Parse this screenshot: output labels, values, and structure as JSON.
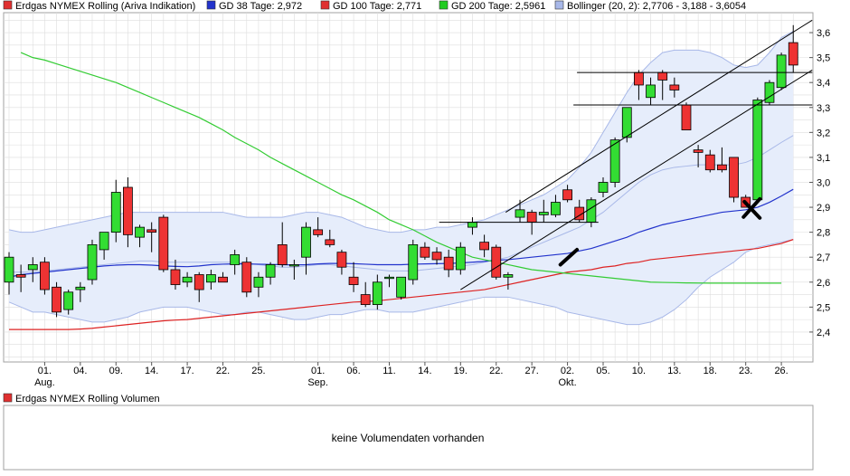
{
  "legend": {
    "items": [
      {
        "label": "Erdgas NYMEX Rolling (Ariva Indikation)",
        "color": "#e03030"
      },
      {
        "label": "GD 38 Tage: 2,972",
        "color": "#2233cc"
      },
      {
        "label": "GD 100 Tage: 2,771",
        "color": "#e03030"
      },
      {
        "label": "GD 200 Tage: 2,5961",
        "color": "#22cc22"
      },
      {
        "label": "Bollinger (20, 2): 2,7706 - 3,188 - 3,6054",
        "color": "#a8b8e8"
      }
    ]
  },
  "volume": {
    "legend_label": "Erdgas NYMEX Rolling Volumen",
    "legend_color": "#e03030",
    "message": "keine Volumendaten vorhanden"
  },
  "colors": {
    "up": "#33dd33",
    "down": "#ee3333",
    "ma38": "#2233cc",
    "ma100": "#dd2222",
    "ma200": "#33cc33",
    "bollinger_line": "#a8b8e8",
    "bollinger_fill": "#e6edfb",
    "grid": "#dddddd"
  },
  "chart_data": {
    "type": "candlestick",
    "title": "Erdgas NYMEX Rolling (Ariva Indikation)",
    "ylim": [
      2.28,
      3.68
    ],
    "y_ticks": [
      2.4,
      2.5,
      2.6,
      2.7,
      2.8,
      2.9,
      3.0,
      3.1,
      3.2,
      3.3,
      3.4,
      3.5,
      3.6
    ],
    "y_tick_labels": [
      "2,4",
      "2,5",
      "2,6",
      "2,7",
      "2,8",
      "2,9",
      "3,0",
      "3,1",
      "3,2",
      "3,3",
      "3,4",
      "3,5",
      "3,6"
    ],
    "x_ticks": [
      {
        "label": "01.",
        "sub": "Aug.",
        "idx": 3
      },
      {
        "label": "04.",
        "sub": "",
        "idx": 6
      },
      {
        "label": "09.",
        "sub": "",
        "idx": 9
      },
      {
        "label": "14.",
        "sub": "",
        "idx": 12
      },
      {
        "label": "17.",
        "sub": "",
        "idx": 15
      },
      {
        "label": "22.",
        "sub": "",
        "idx": 18
      },
      {
        "label": "25.",
        "sub": "",
        "idx": 21
      },
      {
        "label": "01.",
        "sub": "Sep.",
        "idx": 26
      },
      {
        "label": "06.",
        "sub": "",
        "idx": 29
      },
      {
        "label": "11.",
        "sub": "",
        "idx": 32
      },
      {
        "label": "14.",
        "sub": "",
        "idx": 35
      },
      {
        "label": "19.",
        "sub": "",
        "idx": 38
      },
      {
        "label": "22.",
        "sub": "",
        "idx": 41
      },
      {
        "label": "27.",
        "sub": "",
        "idx": 44
      },
      {
        "label": "02.",
        "sub": "Okt.",
        "idx": 47
      },
      {
        "label": "05.",
        "sub": "",
        "idx": 50
      },
      {
        "label": "10.",
        "sub": "",
        "idx": 53
      },
      {
        "label": "13.",
        "sub": "",
        "idx": 56
      },
      {
        "label": "18.",
        "sub": "",
        "idx": 59
      },
      {
        "label": "23.",
        "sub": "",
        "idx": 62
      },
      {
        "label": "26.",
        "sub": "",
        "idx": 65
      }
    ],
    "candles": [
      {
        "o": 2.6,
        "h": 2.72,
        "l": 2.55,
        "c": 2.7
      },
      {
        "o": 2.63,
        "h": 2.67,
        "l": 2.56,
        "c": 2.62
      },
      {
        "o": 2.65,
        "h": 2.7,
        "l": 2.6,
        "c": 2.67
      },
      {
        "o": 2.68,
        "h": 2.7,
        "l": 2.55,
        "c": 2.57
      },
      {
        "o": 2.58,
        "h": 2.6,
        "l": 2.46,
        "c": 2.48
      },
      {
        "o": 2.49,
        "h": 2.57,
        "l": 2.47,
        "c": 2.56
      },
      {
        "o": 2.57,
        "h": 2.6,
        "l": 2.52,
        "c": 2.58
      },
      {
        "o": 2.61,
        "h": 2.77,
        "l": 2.59,
        "c": 2.75
      },
      {
        "o": 2.73,
        "h": 2.8,
        "l": 2.69,
        "c": 2.8
      },
      {
        "o": 2.8,
        "h": 3.01,
        "l": 2.76,
        "c": 2.96
      },
      {
        "o": 2.98,
        "h": 3.02,
        "l": 2.74,
        "c": 2.79
      },
      {
        "o": 2.78,
        "h": 2.83,
        "l": 2.74,
        "c": 2.82
      },
      {
        "o": 2.81,
        "h": 2.84,
        "l": 2.72,
        "c": 2.8
      },
      {
        "o": 2.86,
        "h": 2.87,
        "l": 2.64,
        "c": 2.65
      },
      {
        "o": 2.65,
        "h": 2.69,
        "l": 2.57,
        "c": 2.59
      },
      {
        "o": 2.6,
        "h": 2.64,
        "l": 2.58,
        "c": 2.62
      },
      {
        "o": 2.63,
        "h": 2.64,
        "l": 2.52,
        "c": 2.57
      },
      {
        "o": 2.6,
        "h": 2.65,
        "l": 2.57,
        "c": 2.63
      },
      {
        "o": 2.62,
        "h": 2.64,
        "l": 2.6,
        "c": 2.6
      },
      {
        "o": 2.67,
        "h": 2.73,
        "l": 2.63,
        "c": 2.71
      },
      {
        "o": 2.68,
        "h": 2.7,
        "l": 2.54,
        "c": 2.56
      },
      {
        "o": 2.58,
        "h": 2.64,
        "l": 2.54,
        "c": 2.62
      },
      {
        "o": 2.62,
        "h": 2.68,
        "l": 2.59,
        "c": 2.67
      },
      {
        "o": 2.75,
        "h": 2.84,
        "l": 2.66,
        "c": 2.67
      },
      {
        "o": 2.67,
        "h": 2.69,
        "l": 2.61,
        "c": 2.67
      },
      {
        "o": 2.7,
        "h": 2.84,
        "l": 2.63,
        "c": 2.82
      },
      {
        "o": 2.81,
        "h": 2.86,
        "l": 2.78,
        "c": 2.79
      },
      {
        "o": 2.77,
        "h": 2.81,
        "l": 2.74,
        "c": 2.75
      },
      {
        "o": 2.72,
        "h": 2.73,
        "l": 2.63,
        "c": 2.66
      },
      {
        "o": 2.62,
        "h": 2.68,
        "l": 2.56,
        "c": 2.59
      },
      {
        "o": 2.55,
        "h": 2.6,
        "l": 2.5,
        "c": 2.51
      },
      {
        "o": 2.51,
        "h": 2.63,
        "l": 2.49,
        "c": 2.6
      },
      {
        "o": 2.62,
        "h": 2.63,
        "l": 2.58,
        "c": 2.62
      },
      {
        "o": 2.54,
        "h": 2.62,
        "l": 2.53,
        "c": 2.62
      },
      {
        "o": 2.61,
        "h": 2.77,
        "l": 2.59,
        "c": 2.75
      },
      {
        "o": 2.74,
        "h": 2.76,
        "l": 2.69,
        "c": 2.7
      },
      {
        "o": 2.72,
        "h": 2.74,
        "l": 2.67,
        "c": 2.69
      },
      {
        "o": 2.7,
        "h": 2.73,
        "l": 2.62,
        "c": 2.65
      },
      {
        "o": 2.65,
        "h": 2.76,
        "l": 2.63,
        "c": 2.74
      },
      {
        "o": 2.82,
        "h": 2.86,
        "l": 2.79,
        "c": 2.84
      },
      {
        "o": 2.76,
        "h": 2.79,
        "l": 2.7,
        "c": 2.73
      },
      {
        "o": 2.74,
        "h": 2.75,
        "l": 2.61,
        "c": 2.62
      },
      {
        "o": 2.62,
        "h": 2.64,
        "l": 2.57,
        "c": 2.63
      },
      {
        "o": 2.86,
        "h": 2.93,
        "l": 2.84,
        "c": 2.89
      },
      {
        "o": 2.88,
        "h": 2.89,
        "l": 2.79,
        "c": 2.84
      },
      {
        "o": 2.87,
        "h": 2.93,
        "l": 2.84,
        "c": 2.88
      },
      {
        "o": 2.87,
        "h": 2.95,
        "l": 2.86,
        "c": 2.92
      },
      {
        "o": 2.97,
        "h": 2.99,
        "l": 2.92,
        "c": 2.93
      },
      {
        "o": 2.9,
        "h": 2.93,
        "l": 2.84,
        "c": 2.85
      },
      {
        "o": 2.84,
        "h": 2.94,
        "l": 2.82,
        "c": 2.93
      },
      {
        "o": 2.96,
        "h": 3.02,
        "l": 2.94,
        "c": 3.0
      },
      {
        "o": 3.0,
        "h": 3.18,
        "l": 2.98,
        "c": 3.17
      },
      {
        "o": 3.18,
        "h": 3.3,
        "l": 3.16,
        "c": 3.3
      },
      {
        "o": 3.44,
        "h": 3.45,
        "l": 3.33,
        "c": 3.39
      },
      {
        "o": 3.34,
        "h": 3.42,
        "l": 3.31,
        "c": 3.39
      },
      {
        "o": 3.44,
        "h": 3.45,
        "l": 3.33,
        "c": 3.41
      },
      {
        "o": 3.39,
        "h": 3.42,
        "l": 3.34,
        "c": 3.37
      },
      {
        "o": 3.31,
        "h": 3.32,
        "l": 3.21,
        "c": 3.21
      },
      {
        "o": 3.13,
        "h": 3.15,
        "l": 3.06,
        "c": 3.12
      },
      {
        "o": 3.11,
        "h": 3.13,
        "l": 3.04,
        "c": 3.05
      },
      {
        "o": 3.07,
        "h": 3.14,
        "l": 3.04,
        "c": 3.05
      },
      {
        "o": 3.1,
        "h": 3.1,
        "l": 2.92,
        "c": 2.94
      },
      {
        "o": 2.94,
        "h": 2.95,
        "l": 2.9,
        "c": 2.9
      },
      {
        "o": 2.93,
        "h": 3.34,
        "l": 2.92,
        "c": 3.33
      },
      {
        "o": 3.32,
        "h": 3.41,
        "l": 3.31,
        "c": 3.4
      },
      {
        "o": 3.38,
        "h": 3.52,
        "l": 3.37,
        "c": 3.51
      },
      {
        "o": 3.56,
        "h": 3.63,
        "l": 3.44,
        "c": 3.47
      }
    ],
    "series": [
      {
        "name": "GD 38 Tage",
        "start": 0,
        "values": [
          2.62,
          2.63,
          2.635,
          2.64,
          2.645,
          2.65,
          2.655,
          2.66,
          2.665,
          2.668,
          2.67,
          2.67,
          2.668,
          2.665,
          2.663,
          2.662,
          2.665,
          2.67,
          2.672,
          2.673,
          2.673,
          2.672,
          2.671,
          2.67,
          2.669,
          2.67,
          2.673,
          2.675,
          2.675,
          2.674,
          2.672,
          2.67,
          2.67,
          2.67,
          2.672,
          2.673,
          2.674,
          2.675,
          2.677,
          2.68,
          2.683,
          2.688,
          2.69,
          2.695,
          2.7,
          2.705,
          2.71,
          2.715,
          2.725,
          2.735,
          2.75,
          2.765,
          2.78,
          2.8,
          2.815,
          2.83,
          2.84,
          2.85,
          2.86,
          2.87,
          2.88,
          2.885,
          2.89,
          2.9,
          2.92,
          2.945,
          2.972
        ]
      },
      {
        "name": "GD 100 Tage",
        "start": 0,
        "values": [
          2.41,
          2.41,
          2.41,
          2.41,
          2.41,
          2.41,
          2.412,
          2.415,
          2.42,
          2.425,
          2.43,
          2.435,
          2.44,
          2.445,
          2.448,
          2.45,
          2.455,
          2.46,
          2.465,
          2.47,
          2.475,
          2.48,
          2.485,
          2.49,
          2.495,
          2.5,
          2.505,
          2.51,
          2.515,
          2.52,
          2.522,
          2.525,
          2.53,
          2.535,
          2.54,
          2.545,
          2.55,
          2.555,
          2.56,
          2.565,
          2.57,
          2.58,
          2.59,
          2.6,
          2.61,
          2.62,
          2.63,
          2.64,
          2.645,
          2.65,
          2.66,
          2.665,
          2.675,
          2.68,
          2.69,
          2.695,
          2.7,
          2.705,
          2.71,
          2.715,
          2.72,
          2.725,
          2.73,
          2.735,
          2.745,
          2.755,
          2.771
        ]
      },
      {
        "name": "GD 200 Tage",
        "start": 1,
        "values": [
          3.52,
          3.5,
          3.49,
          3.475,
          3.46,
          3.445,
          3.43,
          3.415,
          3.4,
          3.38,
          3.36,
          3.34,
          3.32,
          3.3,
          3.28,
          3.26,
          3.235,
          3.21,
          3.18,
          3.155,
          3.13,
          3.1,
          3.075,
          3.05,
          3.025,
          3.0,
          2.975,
          2.95,
          2.93,
          2.905,
          2.88,
          2.85,
          2.83,
          2.81,
          2.785,
          2.76,
          2.74,
          2.72,
          2.7,
          2.69,
          2.68,
          2.67,
          2.66,
          2.65,
          2.645,
          2.64,
          2.635,
          2.63,
          2.625,
          2.62,
          2.615,
          2.61,
          2.605,
          2.6,
          2.599,
          2.598,
          2.597,
          2.5965,
          2.5961,
          2.5961,
          2.5961,
          2.5961,
          2.5961,
          2.5961,
          2.5961
        ]
      },
      {
        "name": "Bollinger upper",
        "start": 0,
        "values": [
          2.81,
          2.8,
          2.8,
          2.81,
          2.82,
          2.83,
          2.84,
          2.85,
          2.86,
          2.87,
          2.88,
          2.88,
          2.88,
          2.88,
          2.88,
          2.88,
          2.88,
          2.88,
          2.88,
          2.87,
          2.86,
          2.86,
          2.86,
          2.86,
          2.87,
          2.88,
          2.88,
          2.87,
          2.86,
          2.84,
          2.82,
          2.81,
          2.8,
          2.8,
          2.81,
          2.81,
          2.82,
          2.82,
          2.83,
          2.84,
          2.85,
          2.87,
          2.89,
          2.91,
          2.93,
          2.95,
          2.98,
          3.01,
          3.06,
          3.12,
          3.2,
          3.28,
          3.36,
          3.43,
          3.48,
          3.52,
          3.53,
          3.53,
          3.53,
          3.52,
          3.5,
          3.47,
          3.46,
          3.47,
          3.52,
          3.58,
          3.6054
        ]
      },
      {
        "name": "Bollinger middle",
        "start": 0,
        "values": [
          2.64,
          2.64,
          2.64,
          2.645,
          2.65,
          2.655,
          2.66,
          2.665,
          2.67,
          2.675,
          2.68,
          2.685,
          2.685,
          2.68,
          2.68,
          2.68,
          2.68,
          2.68,
          2.68,
          2.68,
          2.675,
          2.67,
          2.665,
          2.66,
          2.66,
          2.665,
          2.67,
          2.67,
          2.665,
          2.66,
          2.655,
          2.65,
          2.645,
          2.645,
          2.645,
          2.65,
          2.655,
          2.66,
          2.665,
          2.67,
          2.68,
          2.69,
          2.7,
          2.72,
          2.74,
          2.76,
          2.78,
          2.8,
          2.82,
          2.85,
          2.88,
          2.92,
          2.96,
          3.0,
          3.03,
          3.05,
          3.06,
          3.065,
          3.07,
          3.07,
          3.07,
          3.07,
          3.08,
          3.1,
          3.13,
          3.16,
          3.188
        ]
      },
      {
        "name": "Bollinger lower",
        "start": 0,
        "values": [
          2.52,
          2.5,
          2.48,
          2.48,
          2.47,
          2.46,
          2.45,
          2.44,
          2.44,
          2.45,
          2.46,
          2.48,
          2.49,
          2.5,
          2.5,
          2.5,
          2.49,
          2.48,
          2.47,
          2.47,
          2.48,
          2.48,
          2.47,
          2.46,
          2.45,
          2.45,
          2.46,
          2.47,
          2.47,
          2.48,
          2.49,
          2.49,
          2.48,
          2.48,
          2.48,
          2.49,
          2.5,
          2.51,
          2.52,
          2.53,
          2.54,
          2.54,
          2.54,
          2.53,
          2.52,
          2.51,
          2.5,
          2.48,
          2.47,
          2.46,
          2.45,
          2.44,
          2.43,
          2.43,
          2.44,
          2.46,
          2.49,
          2.53,
          2.58,
          2.62,
          2.65,
          2.68,
          2.72,
          2.74,
          2.75,
          2.76,
          2.7706
        ]
      }
    ],
    "annotations": {
      "trendlines": [
        {
          "x1": 38,
          "y1": 2.57,
          "x2": 67.6,
          "y2": 3.45
        },
        {
          "x1": 41.8,
          "y1": 2.88,
          "x2": 67.6,
          "y2": 3.65
        },
        {
          "x1": 36.2,
          "y1": 2.84,
          "x2": 49.6,
          "y2": 2.84
        },
        {
          "x1": 47.5,
          "y1": 3.31,
          "x2": 67.6,
          "y2": 3.31
        },
        {
          "x1": 47.8,
          "y1": 3.44,
          "x2": 67.6,
          "y2": 3.44
        }
      ],
      "marks": [
        {
          "type": "slash",
          "x1": 46.4,
          "y1": 2.67,
          "x2": 47.8,
          "y2": 2.73
        },
        {
          "type": "cross",
          "x": 62.5,
          "y": 2.89
        }
      ]
    }
  }
}
